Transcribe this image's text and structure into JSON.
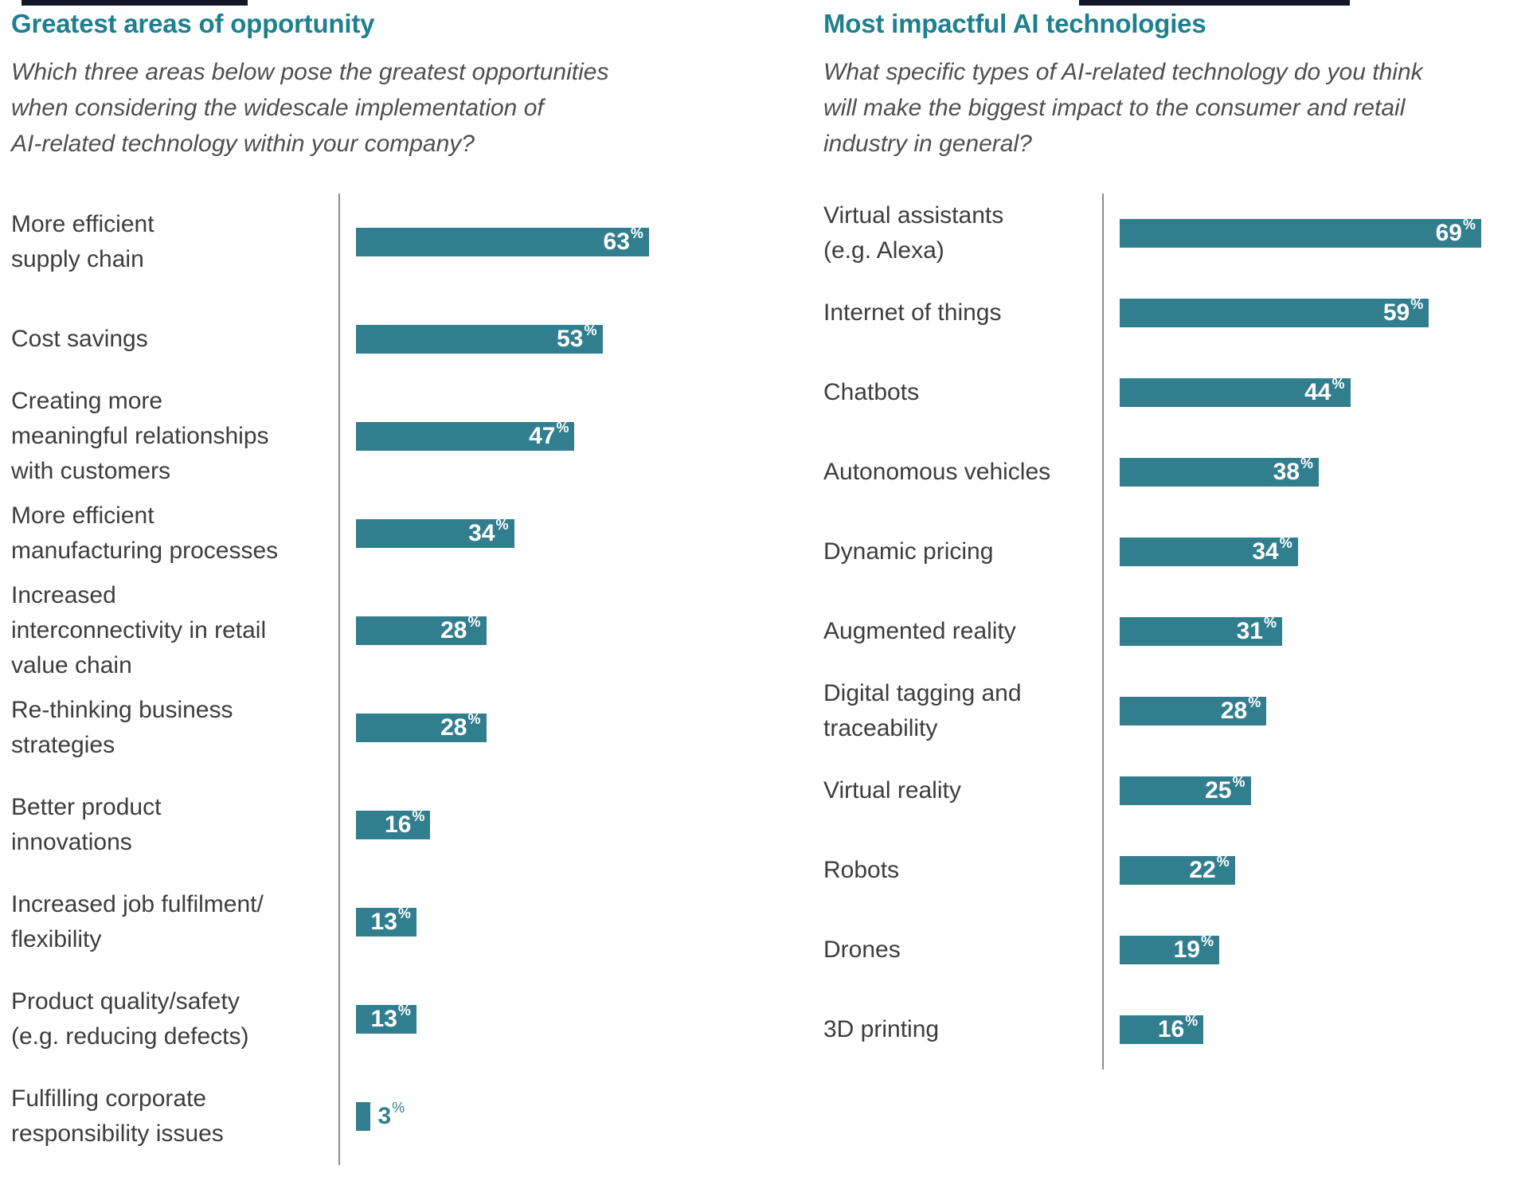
{
  "chart_data": [
    {
      "type": "bar",
      "orientation": "horizontal",
      "title": "Greatest areas of opportunity",
      "subtitle": "Which three areas below pose the greatest opportunities\nwhen considering the widescale implementation of\nAI-related technology within your company?",
      "unit": "%",
      "xlim": [
        0,
        100
      ],
      "grid": false,
      "legend": false,
      "bar_color": "#317E8F",
      "categories": [
        "More efficient\nsupply chain",
        "Cost savings",
        "Creating more\nmeaningful relationships\nwith customers",
        "More efficient\nmanufacturing processes",
        "Increased\ninterconnectivity in retail\nvalue chain",
        "Re-thinking business\nstrategies",
        "Better product\ninnovations",
        "Increased job fulfilment/\nflexibility",
        "Product quality/safety\n(e.g. reducing defects)",
        "Fulfilling corporate\nresponsibility issues"
      ],
      "values": [
        63,
        53,
        47,
        34,
        28,
        28,
        16,
        13,
        13,
        3
      ]
    },
    {
      "type": "bar",
      "orientation": "horizontal",
      "title": "Most impactful AI technologies",
      "subtitle": "What specific types of AI-related technology do you think\nwill make the biggest impact to the consumer and retail\nindustry in general?",
      "unit": "%",
      "xlim": [
        0,
        100
      ],
      "grid": false,
      "legend": false,
      "bar_color": "#317E8F",
      "categories": [
        "Virtual assistants\n(e.g. Alexa)",
        "Internet of things",
        "Chatbots",
        "Autonomous vehicles",
        "Dynamic pricing",
        "Augmented reality",
        "Digital tagging and\ntraceability",
        "Virtual reality",
        "Robots",
        "Drones",
        "3D printing"
      ],
      "values": [
        69,
        59,
        44,
        38,
        34,
        31,
        28,
        25,
        22,
        19,
        16
      ]
    }
  ],
  "style": {
    "title_color": "#1E7F8E",
    "bar_color": "#317E8F",
    "value_label_inside_color": "#FFFFFF",
    "value_label_outside_color": "#317E8F",
    "axis_line_color": "#8C8C8C",
    "label_color": "#3D3D3D",
    "subtitle_color": "#4F4F4F",
    "background": "#FFFFFF"
  }
}
